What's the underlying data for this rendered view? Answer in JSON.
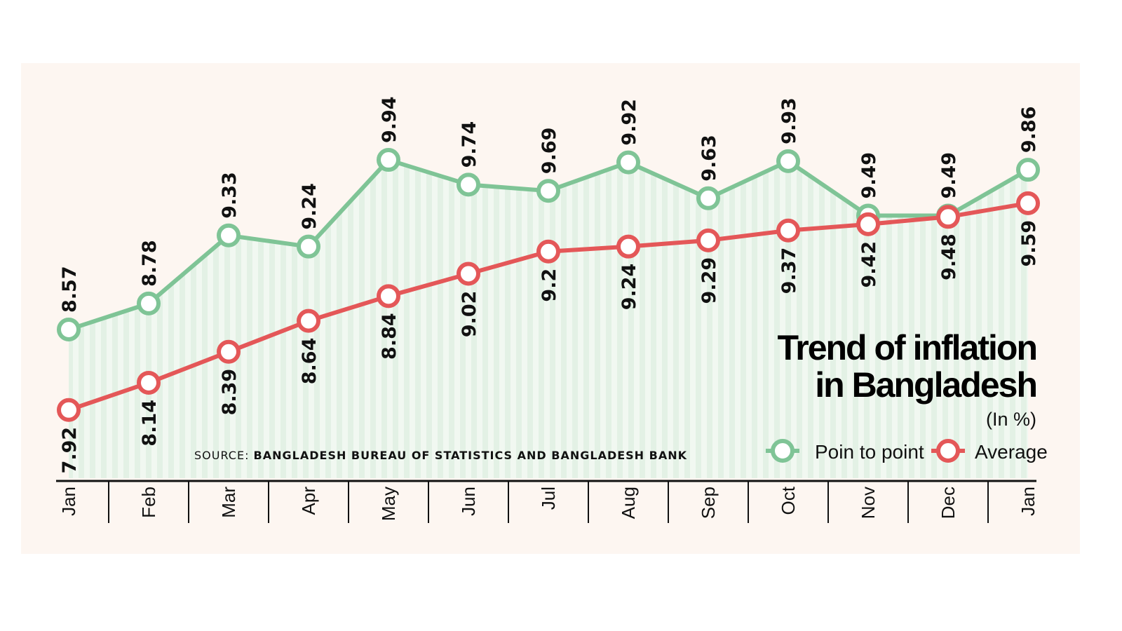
{
  "chart_data": {
    "type": "line",
    "title": "Trend of inflation in Bangladesh",
    "unit": "(In %)",
    "source_label": "SOURCE:",
    "source": "BANGLADESH BUREAU OF STATISTICS AND BANGLADESH BANK",
    "categories": [
      "Jan",
      "Feb",
      "Mar",
      "Apr",
      "May",
      "Jun",
      "Jul",
      "Aug",
      "Sep",
      "Oct",
      "Nov",
      "Dec",
      "Jan"
    ],
    "series": [
      {
        "name": "Poin to point",
        "color": "#7fc496",
        "values": [
          8.57,
          8.78,
          9.33,
          9.24,
          9.94,
          9.74,
          9.69,
          9.92,
          9.63,
          9.93,
          9.49,
          9.49,
          9.86
        ]
      },
      {
        "name": "Average",
        "color": "#e45758",
        "values": [
          7.92,
          8.14,
          8.39,
          8.64,
          8.84,
          9.02,
          9.2,
          9.24,
          9.29,
          9.37,
          9.42,
          9.48,
          9.59
        ]
      }
    ],
    "data_labels": true,
    "grid": false,
    "legend_position": "bottom-right",
    "background": "#fdf6f1"
  }
}
